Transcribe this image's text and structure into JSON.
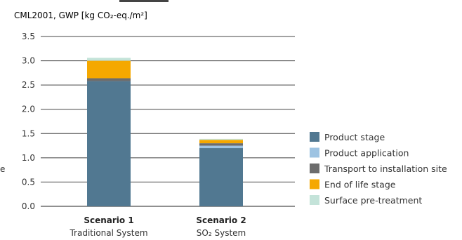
{
  "chart_data": {
    "type": "bar",
    "stacked": true,
    "ylabel": "CML2001, GWP [kg CO₂-eq./m²]",
    "ylim": [
      0,
      3.5
    ],
    "yticks": [
      "0.0",
      "0.5",
      "1.0",
      "1.5",
      "2.0",
      "2.5",
      "3.0",
      "3.5"
    ],
    "grid": true,
    "legend_position": "right",
    "categories": [
      {
        "title": "Scenario 1",
        "subtitle": "Traditional System"
      },
      {
        "title": "Scenario 2",
        "subtitle": "SO₂ System"
      }
    ],
    "series": [
      {
        "name": "Product stage",
        "color": "#517891",
        "values": [
          2.58,
          1.2
        ]
      },
      {
        "name": "Product application",
        "color": "#9dc3e2",
        "values": [
          0.0,
          0.05
        ]
      },
      {
        "name": "Transport to installation site",
        "color": "#6c6c6c",
        "values": [
          0.06,
          0.05
        ]
      },
      {
        "name": "End of life stage",
        "color": "#f5a800",
        "values": [
          0.36,
          0.07
        ]
      },
      {
        "name": "Surface pre-treatment",
        "color": "#c4e3d9",
        "values": [
          0.06,
          0.02
        ]
      }
    ],
    "totals": [
      3.07,
      1.39
    ],
    "cropped_left_letter": "e"
  }
}
